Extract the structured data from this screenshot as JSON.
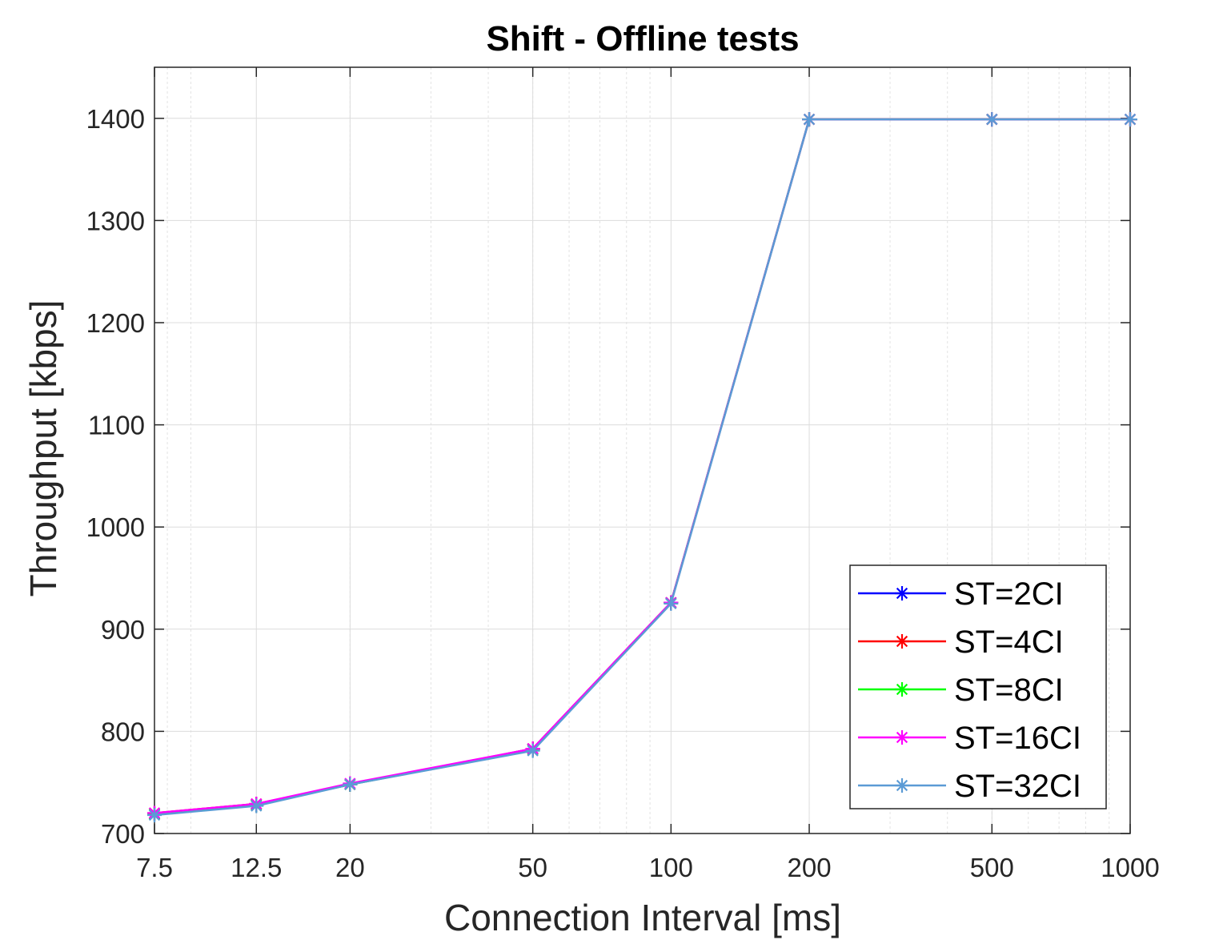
{
  "chart_data": {
    "type": "line",
    "title": "Shift - Offline tests",
    "xlabel": "Connection Interval [ms]",
    "ylabel": "Throughput [kbps]",
    "xscale": "log",
    "xlim": [
      7.5,
      1000
    ],
    "ylim": [
      700,
      1450
    ],
    "xticks": [
      7.5,
      12.5,
      20,
      50,
      100,
      200,
      500,
      1000
    ],
    "xtick_labels": [
      "7.5",
      "12.5",
      "20",
      "50",
      "100",
      "200",
      "500",
      "1000"
    ],
    "yticks": [
      700,
      800,
      900,
      1000,
      1100,
      1200,
      1300,
      1400
    ],
    "ytick_labels": [
      "700",
      "800",
      "900",
      "1000",
      "1100",
      "1200",
      "1300",
      "1400"
    ],
    "grid": true,
    "legend_position": "bottom-right",
    "x": [
      7.5,
      12.5,
      20,
      50,
      100,
      200,
      500,
      1000
    ],
    "series": [
      {
        "name": "ST=2CI",
        "color": "#0000ff",
        "values": [
          719,
          728,
          748,
          783,
          926,
          1399,
          1399,
          1399
        ]
      },
      {
        "name": "ST=4CI",
        "color": "#ff0000",
        "values": [
          720,
          729,
          748,
          783,
          926,
          1399,
          1399,
          1399
        ]
      },
      {
        "name": "ST=8CI",
        "color": "#00ff00",
        "values": [
          719,
          728,
          748,
          782,
          926,
          1399,
          1399,
          1399
        ]
      },
      {
        "name": "ST=16CI",
        "color": "#ff00ff",
        "values": [
          720,
          729,
          749,
          783,
          926,
          1399,
          1399,
          1399
        ]
      },
      {
        "name": "ST=32CI",
        "color": "#5b9bd5",
        "values": [
          718,
          727,
          748,
          781,
          925,
          1399,
          1399,
          1399
        ]
      }
    ]
  }
}
